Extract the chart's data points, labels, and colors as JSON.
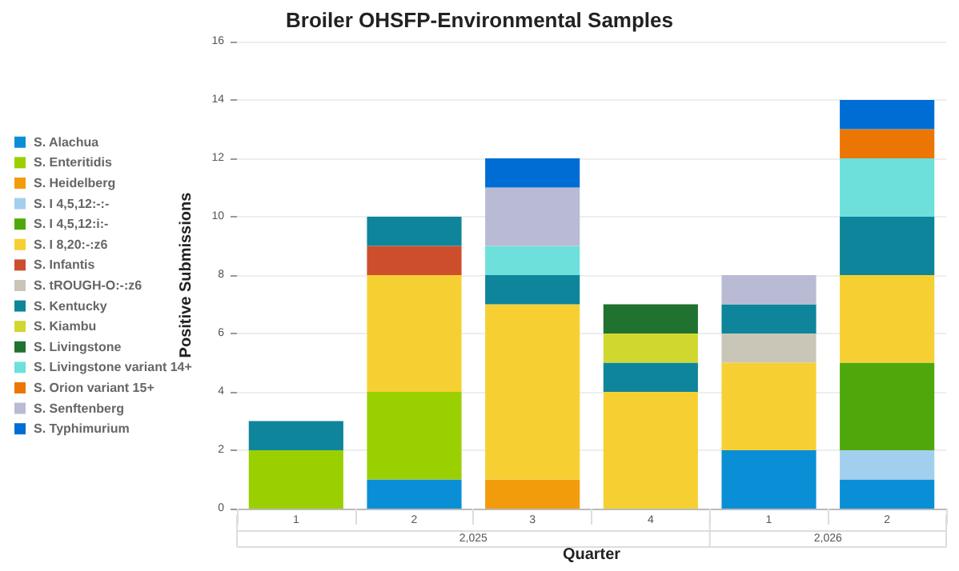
{
  "chart_data": {
    "type": "bar",
    "title": "Broiler OHSFP-Environmental Samples",
    "xlabel": "Quarter",
    "ylabel": "Positive Submissions",
    "categories": [
      "1",
      "2",
      "3",
      "4",
      "1",
      "2"
    ],
    "annotations": [
      "2,025",
      "2,026"
    ],
    "stacked": true,
    "ylim": [
      0,
      16
    ],
    "yticks": [
      0,
      2,
      4,
      6,
      8,
      10,
      12,
      14,
      16
    ],
    "grid": "y",
    "legend": "left",
    "series": [
      {
        "name": "S. Alachua",
        "color": "#0a8fd6",
        "values": [
          null,
          1,
          null,
          null,
          2,
          1
        ]
      },
      {
        "name": "S. Enteritidis",
        "color": "#9ad000",
        "values": [
          2,
          3,
          null,
          null,
          null,
          null
        ]
      },
      {
        "name": "S. Heidelberg",
        "color": "#f39c0b",
        "values": [
          null,
          null,
          1,
          null,
          null,
          null
        ]
      },
      {
        "name": "S. I 4,5,12:-:-",
        "color": "#a3cfee",
        "values": [
          null,
          null,
          null,
          null,
          null,
          1
        ]
      },
      {
        "name": "S. I 4,5,12:i:-",
        "color": "#4ea80b",
        "values": [
          null,
          null,
          null,
          null,
          null,
          3
        ]
      },
      {
        "name": "S. I 8,20:-:z6",
        "color": "#f6d033",
        "values": [
          null,
          4,
          6,
          4,
          3,
          3
        ]
      },
      {
        "name": "S. Infantis",
        "color": "#cd4e2d",
        "values": [
          null,
          1,
          null,
          null,
          null,
          null
        ]
      },
      {
        "name": "S. tROUGH-O:-:z6",
        "color": "#c9c6b8",
        "values": [
          null,
          null,
          null,
          null,
          1,
          null
        ]
      },
      {
        "name": "S. Kentucky",
        "color": "#0e859b",
        "values": [
          1,
          1,
          1,
          1,
          1,
          2
        ]
      },
      {
        "name": "S. Kiambu",
        "color": "#d0d82f",
        "values": [
          null,
          null,
          null,
          1,
          null,
          null
        ]
      },
      {
        "name": "S. Livingstone",
        "color": "#217131",
        "values": [
          null,
          null,
          null,
          1,
          null,
          null
        ]
      },
      {
        "name": "S. Livingstone variant 14+",
        "color": "#6de0dc",
        "values": [
          null,
          null,
          1,
          null,
          null,
          2
        ]
      },
      {
        "name": "S. Orion variant 15+",
        "color": "#ec7603",
        "values": [
          null,
          null,
          null,
          null,
          null,
          1
        ]
      },
      {
        "name": "S. Senftenberg",
        "color": "#b9bbd4",
        "values": [
          null,
          null,
          2,
          null,
          1,
          null
        ]
      },
      {
        "name": "S. Typhimurium",
        "color": "#006dd4",
        "values": [
          null,
          null,
          1,
          null,
          null,
          1
        ]
      }
    ]
  }
}
